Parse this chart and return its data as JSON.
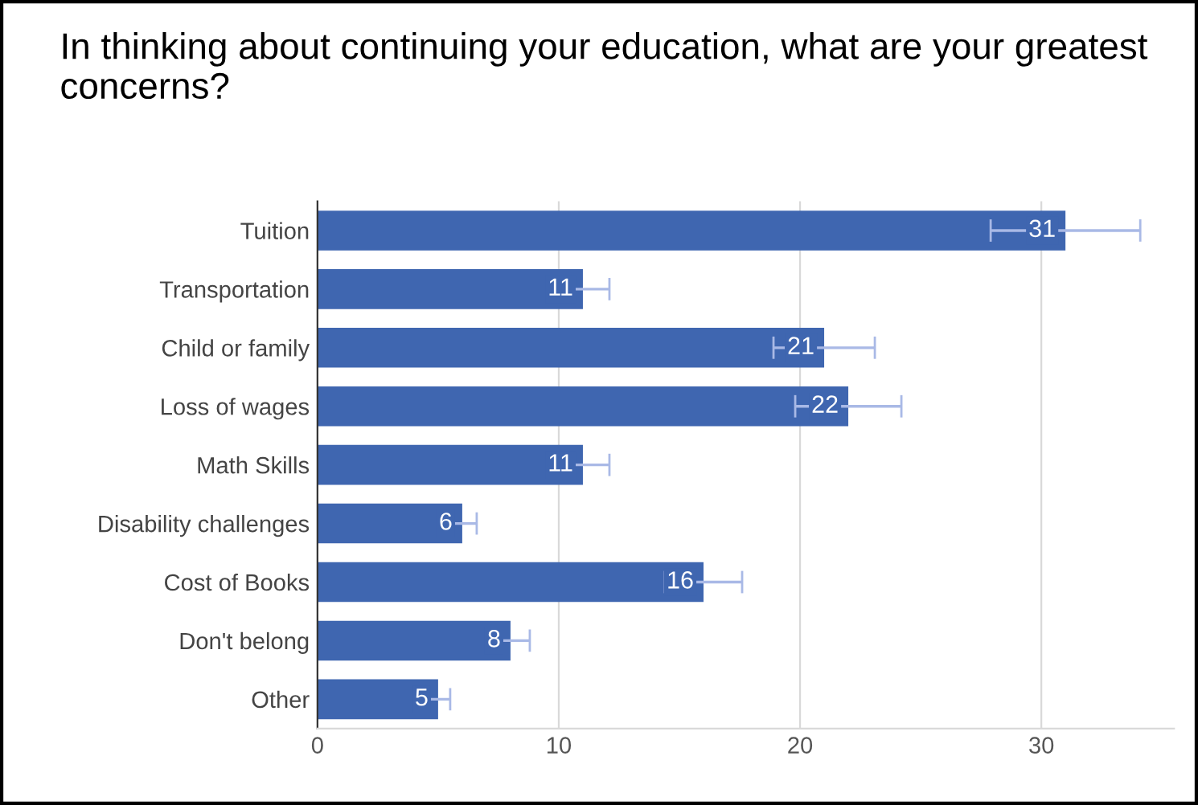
{
  "chart_data": {
    "type": "bar",
    "orientation": "horizontal",
    "title": "In thinking about continuing your education, what are your greatest concerns?",
    "categories": [
      "Tuition",
      "Transportation",
      "Child or family",
      "Loss of wages",
      "Math Skills",
      "Disability challenges",
      "Cost of Books",
      "Don't belong",
      "Other"
    ],
    "values": [
      31,
      11,
      21,
      22,
      11,
      6,
      16,
      8,
      5
    ],
    "errors": [
      3.1,
      1.1,
      2.1,
      2.2,
      1.1,
      0.6,
      1.6,
      0.8,
      0.5
    ],
    "color": "#3f66b0",
    "data_labels": true,
    "grid": "x",
    "xlim": [
      0,
      35.5
    ],
    "xticks": [
      0,
      10,
      20,
      30
    ]
  }
}
